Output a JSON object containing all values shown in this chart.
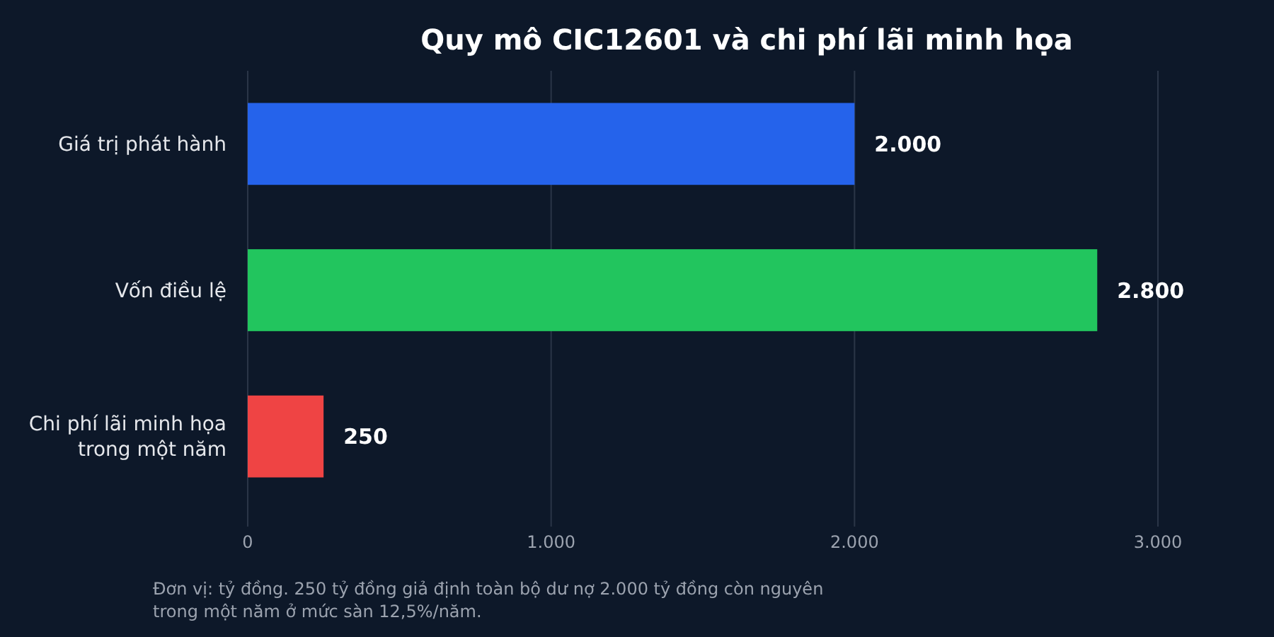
{
  "chart_data": {
    "type": "bar",
    "orientation": "horizontal",
    "title": "Quy mô CIC12601 và chi phí lãi minh họa",
    "categories": [
      "Giá trị phát hành",
      "Vốn điều lệ",
      "Chi phí lãi minh họa trong một năm"
    ],
    "values": [
      2000,
      2800,
      250
    ],
    "colors": [
      "#2563eb",
      "#22c55e",
      "#ef4444"
    ],
    "value_labels": [
      "2.000",
      "2.800",
      "250"
    ],
    "xlim": [
      0,
      3000
    ],
    "xticks": [
      {
        "value": 0,
        "label": "0"
      },
      {
        "value": 1000,
        "label": "1.000"
      },
      {
        "value": 2000,
        "label": "2.000"
      },
      {
        "value": 3000,
        "label": "3.000"
      }
    ],
    "grid": "x",
    "annotations": [
      "Đơn vị: tỷ đồng. 250 tỷ đồng giả định toàn bộ dư nợ 2.000 tỷ đồng còn nguyên trong một năm ở mức sàn 12,5%/năm."
    ]
  }
}
